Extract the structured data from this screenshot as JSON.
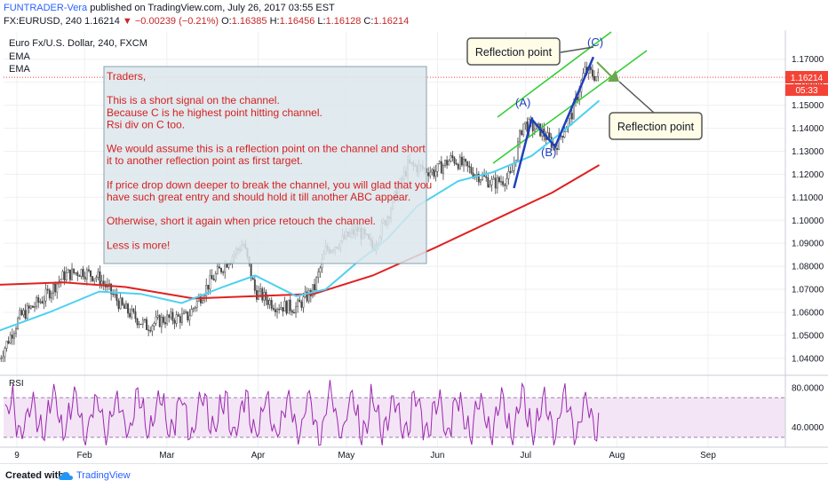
{
  "header": {
    "author": "FUNTRADER-Vera",
    "published": "published on TradingView.com, July 26, 2017 03:55 EST",
    "symbol": "FX:EURUSD, 240",
    "last": "1.16214",
    "change": "▼ −0.00239 (−0.21%)",
    "o_label": "O:",
    "o": "1.16385",
    "h_label": "H:",
    "h": "1.16456",
    "l_label": "L:",
    "l": "1.16128",
    "c_label": "C:",
    "c": "1.16214"
  },
  "legend": {
    "instrument": "Euro Fx/U.S. Dollar, 240, FXCM",
    "ema1": "EMA",
    "ema2": "EMA"
  },
  "note": {
    "lines": [
      "Traders,",
      "",
      "This is a short  signal on the channel.",
      "Because C is he highest point hitting channel.",
      "Rsi div on C too.",
      "",
      "We would assume this is a reflection point on the channel and short",
      "it to another reflection point as first target.",
      "",
      "If price drop down deeper to break the channel, you will glad that you",
      "have such great entry and should hold it till another ABC appear.",
      "",
      "Otherwise, short it again when price retouch the channel.",
      "",
      "Less is more!"
    ]
  },
  "callouts": {
    "top": "Reflection point",
    "right": "Reflection point"
  },
  "wave_labels": {
    "a": "(A)",
    "b": "(B)",
    "c": "(C)"
  },
  "price_tag": {
    "value": "1.16214",
    "countdown": "05:33"
  },
  "rsi_label": "RSI",
  "footer": {
    "created": "Created with",
    "brand": "TradingView"
  },
  "colors": {
    "candles": "#444444",
    "ema_fast": "#4dd0f0",
    "ema_slow": "#e02020",
    "channel": "#32cd32",
    "abc": "#1f3fbf",
    "rsi": "#9c27b0",
    "rsi_band": "#f3e5f5",
    "note_bg": "#dbe6ec",
    "note_text": "#d62020",
    "callout_bg": "#fffde7",
    "price_tag": "#f44336"
  },
  "chart_data": {
    "type": "line",
    "ylim": [
      1.033,
      1.178
    ],
    "y_ticks": [
      1.17,
      1.16,
      1.15,
      1.14,
      1.13,
      1.12,
      1.11,
      1.1,
      1.09,
      1.08,
      1.07,
      1.06,
      1.05,
      1.04
    ],
    "y_tick_labels": [
      "1.17000",
      "1.16000",
      "1.15000",
      "1.14000",
      "1.13000",
      "1.12000",
      "1.11000",
      "1.10000",
      "1.09000",
      "1.08000",
      "1.07000",
      "1.06000",
      "1.05000",
      "1.04000"
    ],
    "x_labels": [
      {
        "label": "9",
        "date": "2017-01-09"
      },
      {
        "label": "Feb",
        "date": "2017-02-01"
      },
      {
        "label": "Mar",
        "date": "2017-03-01"
      },
      {
        "label": "Apr",
        "date": "2017-04-01"
      },
      {
        "label": "May",
        "date": "2017-05-01"
      },
      {
        "label": "Jun",
        "date": "2017-06-01"
      },
      {
        "label": "Jul",
        "date": "2017-07-01"
      },
      {
        "label": "Aug",
        "date": "2017-08-01"
      },
      {
        "label": "Sep",
        "date": "2017-09-01"
      }
    ],
    "series": [
      {
        "name": "EURUSD",
        "points": [
          [
            "2017-01-03",
            1.04
          ],
          [
            "2017-01-10",
            1.058
          ],
          [
            "2017-01-18",
            1.066
          ],
          [
            "2017-01-25",
            1.076
          ],
          [
            "2017-01-31",
            1.078
          ],
          [
            "2017-02-06",
            1.075
          ],
          [
            "2017-02-14",
            1.062
          ],
          [
            "2017-02-22",
            1.054
          ],
          [
            "2017-02-28",
            1.057
          ],
          [
            "2017-03-08",
            1.058
          ],
          [
            "2017-03-15",
            1.072
          ],
          [
            "2017-03-22",
            1.083
          ],
          [
            "2017-03-27",
            1.09
          ],
          [
            "2017-03-31",
            1.069
          ],
          [
            "2017-04-07",
            1.063
          ],
          [
            "2017-04-14",
            1.062
          ],
          [
            "2017-04-20",
            1.07
          ],
          [
            "2017-04-24",
            1.087
          ],
          [
            "2017-04-28",
            1.09
          ],
          [
            "2017-05-05",
            1.096
          ],
          [
            "2017-05-10",
            1.088
          ],
          [
            "2017-05-16",
            1.105
          ],
          [
            "2017-05-22",
            1.124
          ],
          [
            "2017-05-31",
            1.121
          ],
          [
            "2017-06-06",
            1.127
          ],
          [
            "2017-06-13",
            1.121
          ],
          [
            "2017-06-20",
            1.116
          ],
          [
            "2017-06-26",
            1.119
          ],
          [
            "2017-06-30",
            1.142
          ],
          [
            "2017-07-06",
            1.139
          ],
          [
            "2017-07-11",
            1.132
          ],
          [
            "2017-07-17",
            1.147
          ],
          [
            "2017-07-21",
            1.165
          ],
          [
            "2017-07-26",
            1.162
          ]
        ]
      },
      {
        "name": "EMA",
        "points": [
          [
            "2017-01-03",
            1.052
          ],
          [
            "2017-01-20",
            1.06
          ],
          [
            "2017-02-06",
            1.069
          ],
          [
            "2017-02-20",
            1.068
          ],
          [
            "2017-03-06",
            1.064
          ],
          [
            "2017-03-20",
            1.071
          ],
          [
            "2017-03-31",
            1.076
          ],
          [
            "2017-04-14",
            1.067
          ],
          [
            "2017-04-24",
            1.07
          ],
          [
            "2017-05-05",
            1.082
          ],
          [
            "2017-05-15",
            1.092
          ],
          [
            "2017-05-25",
            1.106
          ],
          [
            "2017-06-08",
            1.117
          ],
          [
            "2017-06-20",
            1.121
          ],
          [
            "2017-07-03",
            1.128
          ],
          [
            "2017-07-14",
            1.139
          ],
          [
            "2017-07-26",
            1.152
          ]
        ]
      },
      {
        "name": "EMA",
        "points": [
          [
            "2017-01-03",
            1.072
          ],
          [
            "2017-01-25",
            1.073
          ],
          [
            "2017-02-15",
            1.071
          ],
          [
            "2017-03-10",
            1.066
          ],
          [
            "2017-03-31",
            1.067
          ],
          [
            "2017-04-20",
            1.068
          ],
          [
            "2017-05-10",
            1.076
          ],
          [
            "2017-05-31",
            1.088
          ],
          [
            "2017-06-20",
            1.1
          ],
          [
            "2017-07-10",
            1.112
          ],
          [
            "2017-07-26",
            1.124
          ]
        ]
      }
    ],
    "abc_points": [
      [
        "2017-06-27",
        1.114
      ],
      [
        "2017-07-03",
        1.144
      ],
      [
        "2017-07-11",
        1.132
      ],
      [
        "2017-07-24",
        1.171
      ]
    ],
    "rsi": {
      "ylim": [
        20,
        90
      ],
      "ticks": [
        80,
        40
      ],
      "tick_labels": [
        "80.0000",
        "40.0000"
      ],
      "band": [
        30,
        70
      ]
    }
  }
}
